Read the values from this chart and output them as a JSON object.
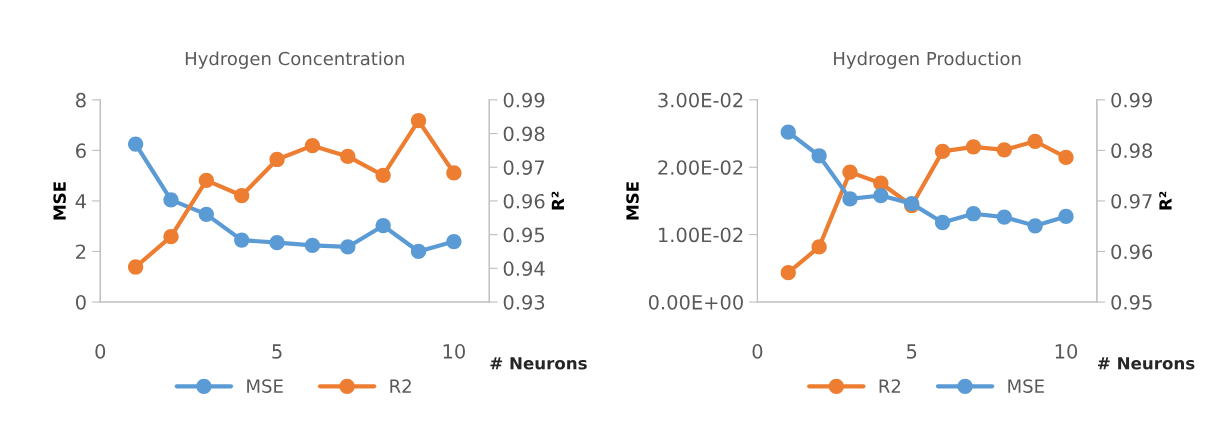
{
  "chart_data": [
    {
      "type": "line",
      "title": "Hydrogen Concentration",
      "xlabel": "# Neurons",
      "ylabel": "MSE",
      "y2label": "R²",
      "x": [
        1,
        2,
        3,
        4,
        5,
        6,
        7,
        8,
        9,
        10
      ],
      "xlim": [
        0,
        11
      ],
      "xticks": [
        0,
        5,
        10
      ],
      "ylim": [
        0,
        8
      ],
      "yticks": [
        0,
        2,
        4,
        6,
        8
      ],
      "y2lim": [
        0.93,
        0.99
      ],
      "y2ticks": [
        0.93,
        0.94,
        0.95,
        0.96,
        0.97,
        0.98,
        0.99
      ],
      "grid": false,
      "legend": "bottom",
      "marker": "circle",
      "line_style": "solid",
      "series": [
        {
          "name": "MSE",
          "color": "#5b9bd5",
          "values": [
            6.25,
            4.04,
            3.47,
            2.45,
            2.35,
            2.24,
            2.18,
            3.02,
            2.0,
            2.39
          ]
        },
        {
          "name": "R2",
          "color": "#ed7d31",
          "axis": "y2",
          "values": [
            0.9404,
            0.9494,
            0.9661,
            0.9616,
            0.9723,
            0.9764,
            0.9732,
            0.9676,
            0.9838,
            0.9683
          ]
        }
      ]
    },
    {
      "type": "line",
      "title": "Hydrogen Production",
      "xlabel": "# Neurons",
      "ylabel": "MSE",
      "y2label": "R²",
      "x": [
        1,
        2,
        3,
        4,
        5,
        6,
        7,
        8,
        9,
        10
      ],
      "xlim": [
        0,
        11
      ],
      "xticks": [
        0,
        5,
        10
      ],
      "ylim": [
        0,
        0.03
      ],
      "yticks": [
        {
          "value": 0,
          "label": "0.00E+00"
        },
        {
          "value": 0.01,
          "label": "1.00E-02"
        },
        {
          "value": 0.02,
          "label": "2.00E-02"
        },
        {
          "value": 0.03,
          "label": "3.00E-02"
        }
      ],
      "y2lim": [
        0.95,
        0.99
      ],
      "y2ticks": [
        0.95,
        0.96,
        0.97,
        0.98,
        0.99
      ],
      "grid": false,
      "legend": "bottom",
      "marker": "circle",
      "line_style": "solid",
      "series": [
        {
          "name": "R2",
          "color": "#ed7d31",
          "axis": "y2",
          "values": [
            0.9558,
            0.9609,
            0.9757,
            0.9735,
            0.9691,
            0.9798,
            0.9807,
            0.9801,
            0.9818,
            0.9786
          ]
        },
        {
          "name": "MSE",
          "color": "#5b9bd5",
          "values": [
            0.0252,
            0.0217,
            0.0153,
            0.0158,
            0.0146,
            0.0118,
            0.0131,
            0.0126,
            0.0113,
            0.0127
          ]
        }
      ]
    }
  ]
}
